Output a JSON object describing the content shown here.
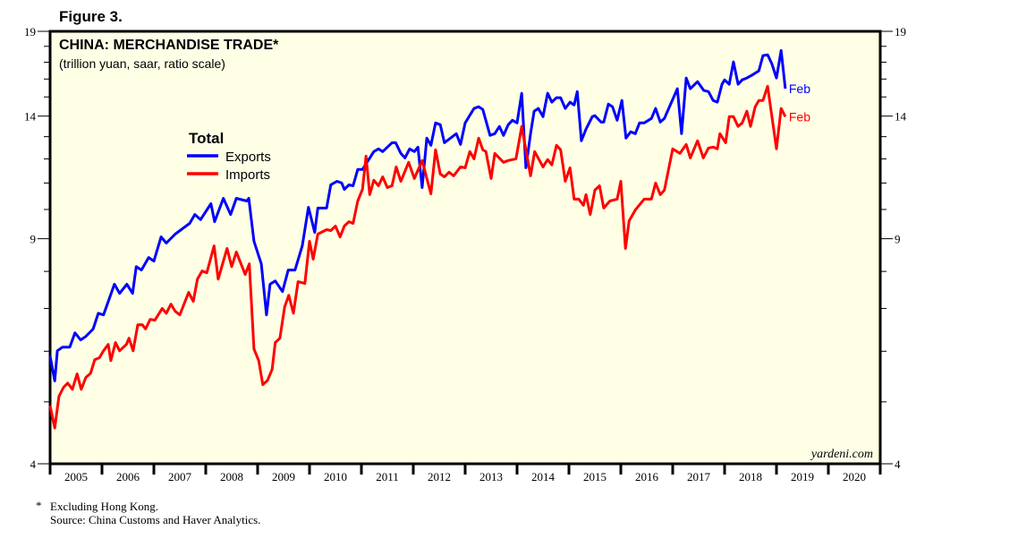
{
  "figure_label": "Figure 3.",
  "chart_data": {
    "type": "line",
    "title": "CHINA: MERCHANDISE TRADE*",
    "subtitle": "(trillion yuan, saar, ratio scale)",
    "yscale": "log",
    "ylim": [
      4,
      19
    ],
    "xlim": [
      2005,
      2021
    ],
    "y_ticks": [
      "4",
      "9",
      "14",
      "19"
    ],
    "y_minor_ticks": [
      5,
      6,
      7,
      8,
      10,
      11,
      12,
      13,
      15,
      16,
      17,
      18
    ],
    "x_ticks": [
      "2005",
      "2006",
      "2007",
      "2008",
      "2009",
      "2010",
      "2011",
      "2012",
      "2013",
      "2014",
      "2015",
      "2016",
      "2017",
      "2018",
      "2019",
      "2020"
    ],
    "legend": {
      "title": "Total",
      "placement": "upper-left"
    },
    "watermark": "yardeni.com",
    "series": [
      {
        "name": "Exports",
        "color": "#0000ff",
        "end_label": "Feb",
        "points": [
          [
            2005.0,
            5.9
          ],
          [
            2005.09,
            5.39
          ],
          [
            2005.14,
            6.01
          ],
          [
            2005.24,
            6.09
          ],
          [
            2005.38,
            6.09
          ],
          [
            2005.48,
            6.41
          ],
          [
            2005.59,
            6.25
          ],
          [
            2005.69,
            6.33
          ],
          [
            2005.83,
            6.5
          ],
          [
            2005.93,
            6.88
          ],
          [
            2006.03,
            6.84
          ],
          [
            2006.24,
            7.64
          ],
          [
            2006.34,
            7.39
          ],
          [
            2006.48,
            7.64
          ],
          [
            2006.59,
            7.39
          ],
          [
            2006.66,
            8.14
          ],
          [
            2006.76,
            8.04
          ],
          [
            2006.9,
            8.41
          ],
          [
            2007.0,
            8.3
          ],
          [
            2007.14,
            9.06
          ],
          [
            2007.24,
            8.86
          ],
          [
            2007.41,
            9.15
          ],
          [
            2007.55,
            9.33
          ],
          [
            2007.69,
            9.51
          ],
          [
            2007.79,
            9.82
          ],
          [
            2007.9,
            9.64
          ],
          [
            2008.1,
            10.21
          ],
          [
            2008.17,
            9.57
          ],
          [
            2008.34,
            10.41
          ],
          [
            2008.48,
            9.82
          ],
          [
            2008.59,
            10.41
          ],
          [
            2008.79,
            10.31
          ],
          [
            2008.83,
            10.41
          ],
          [
            2008.93,
            8.92
          ],
          [
            2009.07,
            8.22
          ],
          [
            2009.17,
            6.84
          ],
          [
            2009.24,
            7.64
          ],
          [
            2009.34,
            7.73
          ],
          [
            2009.48,
            7.44
          ],
          [
            2009.59,
            8.04
          ],
          [
            2009.72,
            8.04
          ],
          [
            2009.86,
            8.77
          ],
          [
            2009.98,
            10.08
          ],
          [
            2010.1,
            9.21
          ],
          [
            2010.16,
            10.05
          ],
          [
            2010.33,
            10.05
          ],
          [
            2010.41,
            10.93
          ],
          [
            2010.53,
            11.07
          ],
          [
            2010.62,
            11.0
          ],
          [
            2010.67,
            10.75
          ],
          [
            2010.76,
            10.93
          ],
          [
            2010.84,
            10.89
          ],
          [
            2010.93,
            11.55
          ],
          [
            2011.02,
            11.55
          ],
          [
            2011.24,
            12.32
          ],
          [
            2011.33,
            12.44
          ],
          [
            2011.41,
            12.32
          ],
          [
            2011.59,
            12.72
          ],
          [
            2011.66,
            12.72
          ],
          [
            2011.76,
            12.24
          ],
          [
            2011.84,
            12.04
          ],
          [
            2011.93,
            12.44
          ],
          [
            2012.02,
            12.32
          ],
          [
            2012.09,
            12.52
          ],
          [
            2012.17,
            10.82
          ],
          [
            2012.26,
            12.93
          ],
          [
            2012.34,
            12.6
          ],
          [
            2012.43,
            13.66
          ],
          [
            2012.52,
            13.57
          ],
          [
            2012.6,
            12.72
          ],
          [
            2012.83,
            13.14
          ],
          [
            2012.91,
            12.64
          ],
          [
            2013.0,
            13.66
          ],
          [
            2013.17,
            14.39
          ],
          [
            2013.26,
            14.48
          ],
          [
            2013.34,
            14.34
          ],
          [
            2013.48,
            13.06
          ],
          [
            2013.57,
            13.14
          ],
          [
            2013.66,
            13.49
          ],
          [
            2013.74,
            13.06
          ],
          [
            2013.83,
            13.57
          ],
          [
            2013.91,
            13.79
          ],
          [
            2014.0,
            13.66
          ],
          [
            2014.09,
            15.2
          ],
          [
            2014.17,
            11.62
          ],
          [
            2014.26,
            13.14
          ],
          [
            2014.33,
            14.25
          ],
          [
            2014.41,
            14.39
          ],
          [
            2014.5,
            13.97
          ],
          [
            2014.59,
            15.2
          ],
          [
            2014.67,
            14.72
          ],
          [
            2014.76,
            14.96
          ],
          [
            2014.84,
            14.96
          ],
          [
            2014.93,
            14.39
          ],
          [
            2015.02,
            14.72
          ],
          [
            2015.1,
            14.57
          ],
          [
            2015.16,
            15.29
          ],
          [
            2015.24,
            12.81
          ],
          [
            2015.33,
            13.36
          ],
          [
            2015.45,
            13.97
          ],
          [
            2015.5,
            14.02
          ],
          [
            2015.62,
            13.7
          ],
          [
            2015.67,
            13.7
          ],
          [
            2015.76,
            14.62
          ],
          [
            2015.84,
            14.48
          ],
          [
            2015.93,
            13.79
          ],
          [
            2016.02,
            14.81
          ],
          [
            2016.1,
            12.93
          ],
          [
            2016.19,
            13.23
          ],
          [
            2016.28,
            13.14
          ],
          [
            2016.36,
            13.66
          ],
          [
            2016.45,
            13.66
          ],
          [
            2016.59,
            13.88
          ],
          [
            2016.67,
            14.39
          ],
          [
            2016.76,
            13.7
          ],
          [
            2016.84,
            13.88
          ],
          [
            2017.09,
            15.45
          ],
          [
            2017.17,
            13.14
          ],
          [
            2017.26,
            16.06
          ],
          [
            2017.34,
            15.45
          ],
          [
            2017.48,
            15.85
          ],
          [
            2017.6,
            15.35
          ],
          [
            2017.69,
            15.29
          ],
          [
            2017.78,
            14.81
          ],
          [
            2017.86,
            14.72
          ],
          [
            2017.95,
            15.7
          ],
          [
            2018.0,
            15.95
          ],
          [
            2018.09,
            15.7
          ],
          [
            2018.17,
            17.02
          ],
          [
            2018.26,
            15.7
          ],
          [
            2018.34,
            15.95
          ],
          [
            2018.43,
            16.06
          ],
          [
            2018.52,
            16.21
          ],
          [
            2018.66,
            16.48
          ],
          [
            2018.74,
            17.41
          ],
          [
            2018.83,
            17.46
          ],
          [
            2018.91,
            16.91
          ],
          [
            2019.0,
            16.06
          ],
          [
            2019.09,
            17.73
          ],
          [
            2019.17,
            15.45
          ]
        ]
      },
      {
        "name": "Imports",
        "color": "#ff0000",
        "end_label": "Feb",
        "points": [
          [
            2005.0,
            4.93
          ],
          [
            2005.09,
            4.55
          ],
          [
            2005.17,
            5.1
          ],
          [
            2005.26,
            5.27
          ],
          [
            2005.34,
            5.35
          ],
          [
            2005.43,
            5.23
          ],
          [
            2005.52,
            5.53
          ],
          [
            2005.6,
            5.23
          ],
          [
            2005.69,
            5.46
          ],
          [
            2005.78,
            5.54
          ],
          [
            2005.86,
            5.82
          ],
          [
            2005.95,
            5.86
          ],
          [
            2006.03,
            6.01
          ],
          [
            2006.12,
            6.15
          ],
          [
            2006.17,
            5.8
          ],
          [
            2006.26,
            6.19
          ],
          [
            2006.34,
            6.01
          ],
          [
            2006.47,
            6.15
          ],
          [
            2006.52,
            6.29
          ],
          [
            2006.6,
            6.01
          ],
          [
            2006.69,
            6.6
          ],
          [
            2006.78,
            6.6
          ],
          [
            2006.84,
            6.5
          ],
          [
            2006.93,
            6.73
          ],
          [
            2007.02,
            6.71
          ],
          [
            2007.16,
            7.0
          ],
          [
            2007.24,
            6.88
          ],
          [
            2007.33,
            7.11
          ],
          [
            2007.41,
            6.93
          ],
          [
            2007.5,
            6.84
          ],
          [
            2007.67,
            7.42
          ],
          [
            2007.76,
            7.18
          ],
          [
            2007.84,
            7.78
          ],
          [
            2007.93,
            8.01
          ],
          [
            2008.02,
            7.96
          ],
          [
            2008.16,
            8.77
          ],
          [
            2008.24,
            7.78
          ],
          [
            2008.41,
            8.69
          ],
          [
            2008.5,
            8.14
          ],
          [
            2008.59,
            8.58
          ],
          [
            2008.76,
            7.91
          ],
          [
            2008.84,
            8.22
          ],
          [
            2008.93,
            6.05
          ],
          [
            2009.02,
            5.8
          ],
          [
            2009.1,
            5.32
          ],
          [
            2009.19,
            5.4
          ],
          [
            2009.28,
            5.62
          ],
          [
            2009.34,
            6.19
          ],
          [
            2009.43,
            6.29
          ],
          [
            2009.52,
            7.04
          ],
          [
            2009.6,
            7.34
          ],
          [
            2009.69,
            6.88
          ],
          [
            2009.78,
            7.71
          ],
          [
            2009.91,
            7.66
          ],
          [
            2010.0,
            8.92
          ],
          [
            2010.07,
            8.36
          ],
          [
            2010.16,
            9.15
          ],
          [
            2010.33,
            9.3
          ],
          [
            2010.41,
            9.27
          ],
          [
            2010.5,
            9.42
          ],
          [
            2010.59,
            9.06
          ],
          [
            2010.67,
            9.42
          ],
          [
            2010.76,
            9.57
          ],
          [
            2010.84,
            9.51
          ],
          [
            2010.93,
            10.31
          ],
          [
            2011.02,
            10.75
          ],
          [
            2011.09,
            12.12
          ],
          [
            2011.16,
            10.55
          ],
          [
            2011.24,
            11.11
          ],
          [
            2011.33,
            10.89
          ],
          [
            2011.41,
            11.25
          ],
          [
            2011.5,
            10.82
          ],
          [
            2011.59,
            10.89
          ],
          [
            2011.67,
            11.66
          ],
          [
            2011.76,
            11.07
          ],
          [
            2011.91,
            11.85
          ],
          [
            2012.02,
            11.18
          ],
          [
            2012.17,
            11.93
          ],
          [
            2012.34,
            10.58
          ],
          [
            2012.43,
            12.4
          ],
          [
            2012.52,
            11.36
          ],
          [
            2012.6,
            11.25
          ],
          [
            2012.69,
            11.44
          ],
          [
            2012.78,
            11.29
          ],
          [
            2012.91,
            11.66
          ],
          [
            2013.0,
            11.62
          ],
          [
            2013.09,
            12.32
          ],
          [
            2013.17,
            12.0
          ],
          [
            2013.26,
            12.93
          ],
          [
            2013.34,
            12.4
          ],
          [
            2013.4,
            12.32
          ],
          [
            2013.5,
            11.18
          ],
          [
            2013.57,
            12.24
          ],
          [
            2013.74,
            11.85
          ],
          [
            2013.83,
            11.93
          ],
          [
            2013.98,
            12.0
          ],
          [
            2014.09,
            13.49
          ],
          [
            2014.26,
            11.29
          ],
          [
            2014.34,
            12.32
          ],
          [
            2014.5,
            11.66
          ],
          [
            2014.59,
            11.97
          ],
          [
            2014.67,
            11.74
          ],
          [
            2014.76,
            12.6
          ],
          [
            2014.84,
            12.4
          ],
          [
            2014.93,
            11.07
          ],
          [
            2015.02,
            11.62
          ],
          [
            2015.1,
            10.38
          ],
          [
            2015.19,
            10.38
          ],
          [
            2015.28,
            10.15
          ],
          [
            2015.33,
            10.55
          ],
          [
            2015.41,
            9.82
          ],
          [
            2015.5,
            10.72
          ],
          [
            2015.59,
            10.89
          ],
          [
            2015.67,
            10.05
          ],
          [
            2015.79,
            10.31
          ],
          [
            2015.93,
            10.38
          ],
          [
            2016.0,
            11.07
          ],
          [
            2016.09,
            8.69
          ],
          [
            2016.16,
            9.6
          ],
          [
            2016.28,
            9.98
          ],
          [
            2016.45,
            10.38
          ],
          [
            2016.59,
            10.38
          ],
          [
            2016.67,
            11.0
          ],
          [
            2016.76,
            10.55
          ],
          [
            2016.84,
            10.72
          ],
          [
            2017.0,
            12.44
          ],
          [
            2017.14,
            12.24
          ],
          [
            2017.26,
            12.64
          ],
          [
            2017.34,
            12.04
          ],
          [
            2017.48,
            12.81
          ],
          [
            2017.59,
            12.04
          ],
          [
            2017.69,
            12.48
          ],
          [
            2017.78,
            12.52
          ],
          [
            2017.86,
            12.44
          ],
          [
            2017.91,
            13.14
          ],
          [
            2018.02,
            12.72
          ],
          [
            2018.09,
            13.97
          ],
          [
            2018.17,
            13.97
          ],
          [
            2018.26,
            13.49
          ],
          [
            2018.34,
            13.66
          ],
          [
            2018.43,
            14.25
          ],
          [
            2018.5,
            13.49
          ],
          [
            2018.59,
            14.48
          ],
          [
            2018.66,
            14.81
          ],
          [
            2018.74,
            14.81
          ],
          [
            2018.83,
            15.59
          ],
          [
            2019.0,
            12.44
          ],
          [
            2019.09,
            14.39
          ],
          [
            2019.17,
            13.97
          ]
        ]
      }
    ]
  },
  "footnote": {
    "marker": "*",
    "note": "Excluding Hong Kong.",
    "source": "Source: China Customs and Haver Analytics."
  }
}
